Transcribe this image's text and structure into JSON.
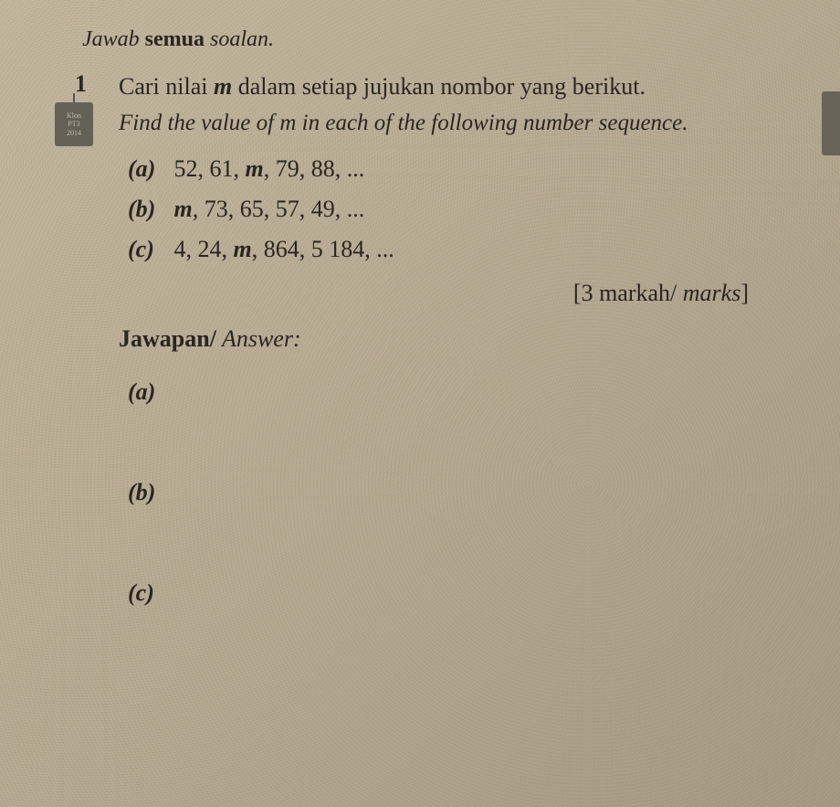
{
  "instruction": {
    "prefix": "Jawab",
    "bold": "semua",
    "suffix": "soalan."
  },
  "question": {
    "number": "1",
    "text_my_part1": "Cari nilai ",
    "text_my_var": "m",
    "text_my_part2": " dalam setiap jujukan nombor yang berikut.",
    "text_en_part1": "Find the value of ",
    "text_en_var": "m",
    "text_en_part2": " in each of the following number sequence.",
    "tag_line1": "Klon",
    "tag_line2": "PT3",
    "tag_line3": "2014"
  },
  "items": {
    "a": {
      "label": "(a)",
      "seq_part1": "52, 61, ",
      "seq_var": "m",
      "seq_part2": ", 79, 88, ..."
    },
    "b": {
      "label": "(b)",
      "seq_var": "m",
      "seq_part2": ", 73, 65, 57, 49, ..."
    },
    "c": {
      "label": "(c)",
      "seq_part1": "4, 24, ",
      "seq_var": "m",
      "seq_part2": ", 864, 5 184, ..."
    }
  },
  "marks": {
    "open": "[3 markah/",
    "italic": " marks",
    "close": "]"
  },
  "answer": {
    "heading_bold": "Jawapan/",
    "heading_italic": " Answer:",
    "a": "(a)",
    "b": "(b)",
    "c": "(c)"
  },
  "colors": {
    "background": "#c5b8a0",
    "text": "#2a2520",
    "tag_bg": "#656058"
  }
}
